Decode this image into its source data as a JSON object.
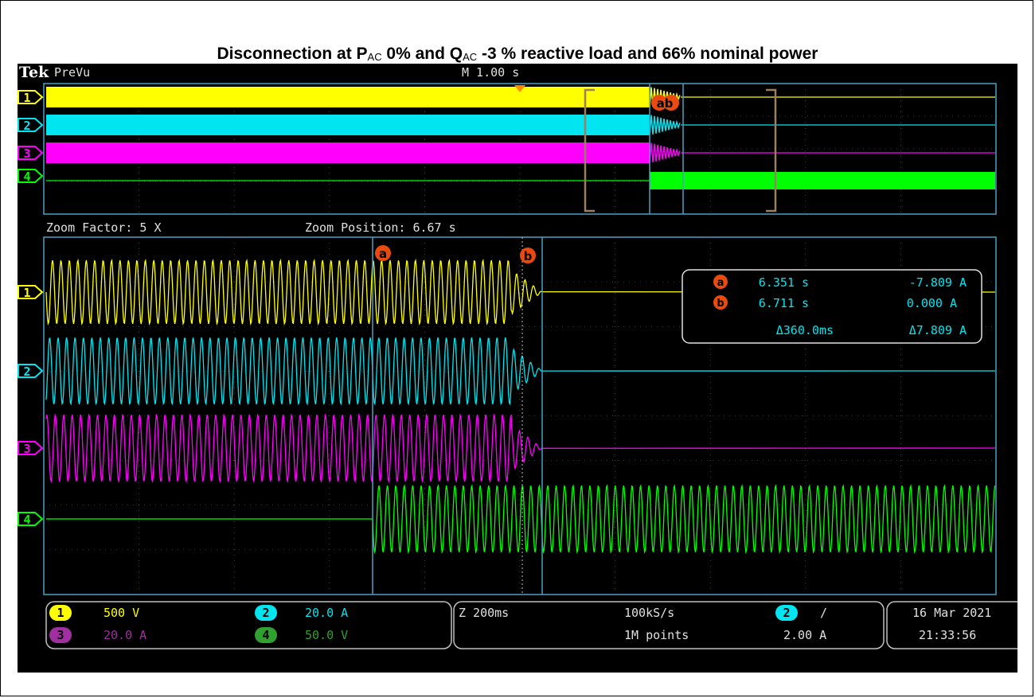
{
  "title": {
    "pre": "Disconnection at P",
    "sub1": "AC",
    "mid": " 0% and Q",
    "sub2": "AC",
    "post": " -3 % reactive load and 66% nominal power"
  },
  "scope": {
    "brand": "Tek",
    "mode": "PreVu",
    "timebase": "M 1.00 s",
    "zoom_factor": "Zoom Factor: 5 X",
    "zoom_position": "Zoom Position: 6.67 s",
    "cursor_a_marker": "a",
    "cursor_b_marker": "b",
    "overview_cursor_markers": "ab",
    "channels": [
      {
        "num": "1",
        "color": "#ffff00",
        "scale": "500 V"
      },
      {
        "num": "2",
        "color": "#00e5f0",
        "scale": "20.0 A"
      },
      {
        "num": "3",
        "color": "#ff00ff",
        "scale": "20.0 A"
      },
      {
        "num": "4",
        "color": "#00ff00",
        "scale": "50.0 V"
      }
    ],
    "readout": {
      "a_time": "6.351 s",
      "a_value": "-7.809 A",
      "b_time": "6.711 s",
      "b_value": "0.000 A",
      "delta_time": "Δ360.0ms",
      "delta_value": "Δ7.809 A"
    },
    "horizontal": {
      "z": "Z 200ms",
      "rate": "100kS/s",
      "points": "1M points"
    },
    "trigger": {
      "channel": "2",
      "slope": "/",
      "level": "2.00 A"
    },
    "date": "16 Mar  2021",
    "time": "21:33:56",
    "colors": {
      "accent": "#ff8a00",
      "grid": "#6a6a6a",
      "frame": "#4aa0c0"
    }
  }
}
